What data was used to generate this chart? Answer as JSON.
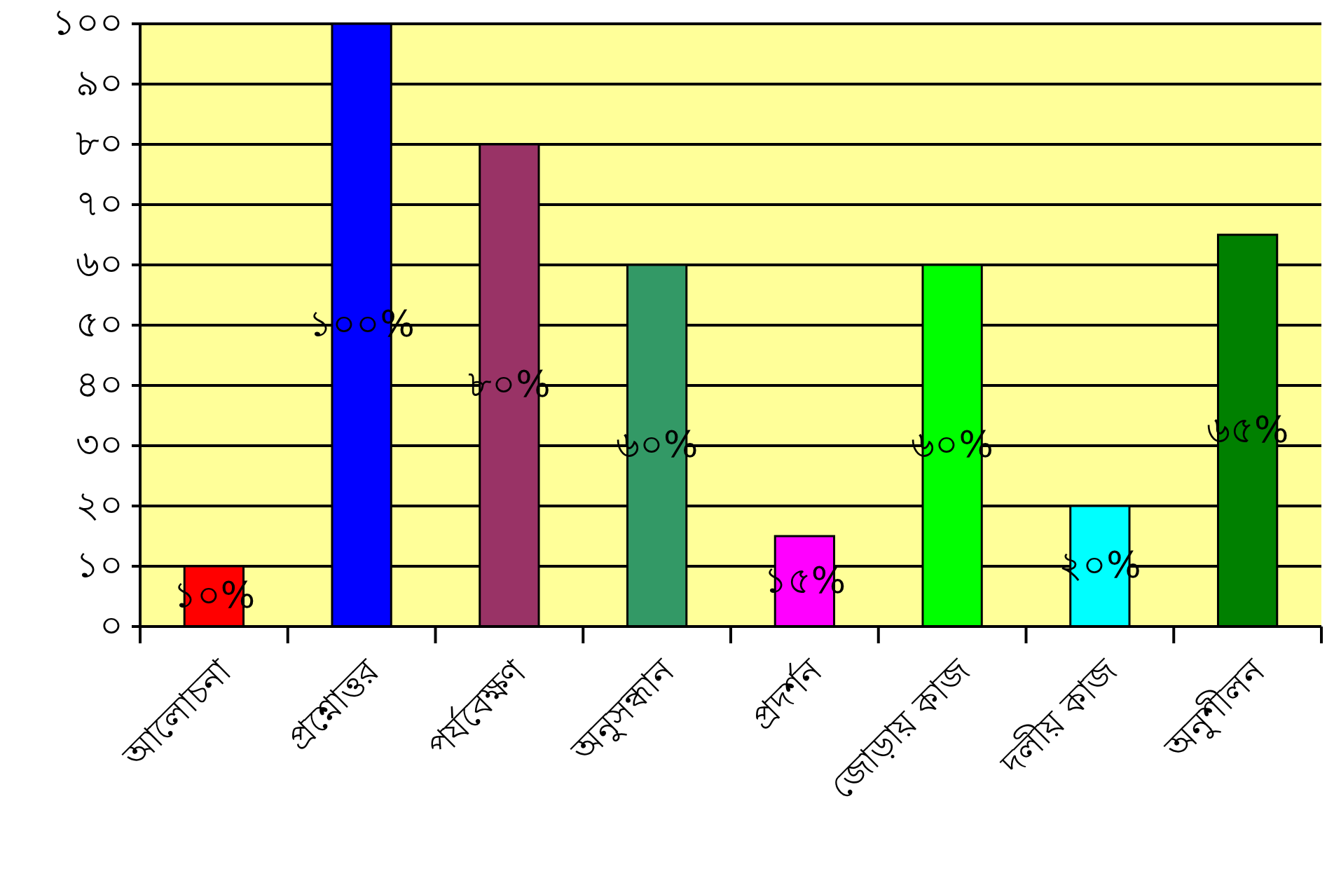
{
  "chart_data": {
    "type": "bar",
    "categories": [
      "আলোচনা",
      "প্রশ্নোত্তর",
      "পর্যবেক্ষণ",
      "অনুসন্ধান",
      "প্রদর্শন",
      "জোড়ায় কাজ",
      "দলীয় কাজ",
      "অনুশীলন"
    ],
    "values": [
      10,
      100,
      80,
      60,
      15,
      60,
      20,
      65
    ],
    "colors": [
      "#ff0000",
      "#0000ff",
      "#993366",
      "#339966",
      "#ff00ff",
      "#00ff00",
      "#00ffff",
      "#008000"
    ],
    "value_labels": [
      "১০%",
      "১০০%",
      "৮০%",
      "৬০%",
      "১৫%",
      "৬০%",
      "২০%",
      "৬৫%"
    ],
    "ylim": [
      0,
      100
    ],
    "yticks": [
      {
        "value": 0,
        "label": "০"
      },
      {
        "value": 10,
        "label": "১০"
      },
      {
        "value": 20,
        "label": "২০"
      },
      {
        "value": 30,
        "label": "৩০"
      },
      {
        "value": 40,
        "label": "৪০"
      },
      {
        "value": 50,
        "label": "৫০"
      },
      {
        "value": 60,
        "label": "৬০"
      },
      {
        "value": 70,
        "label": "৭০"
      },
      {
        "value": 80,
        "label": "৮০"
      },
      {
        "value": 90,
        "label": "৯০"
      },
      {
        "value": 100,
        "label": "১০০"
      }
    ],
    "grid": "y"
  }
}
